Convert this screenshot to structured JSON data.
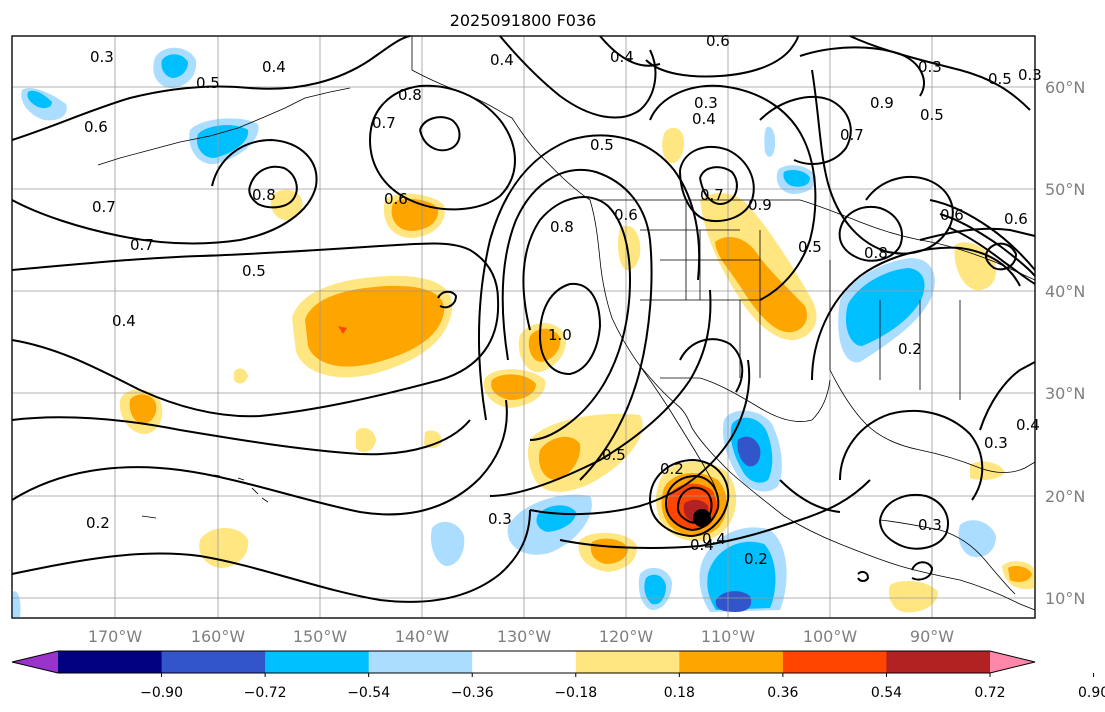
{
  "title": "2025091800 F036",
  "longitude_labels": [
    "170°W",
    "160°W",
    "150°W",
    "140°W",
    "130°W",
    "120°W",
    "110°W",
    "100°W",
    "90°W"
  ],
  "latitude_labels": [
    "60°N",
    "50°N",
    "40°N",
    "30°N",
    "20°N",
    "10°N"
  ],
  "colorbar": {
    "tick_labels": [
      "−0.90",
      "−0.72",
      "−0.54",
      "−0.36",
      "−0.18",
      "0.18",
      "0.36",
      "0.54",
      "0.72",
      "0.90"
    ],
    "colors": [
      "#9933cc",
      "#000080",
      "#3355cc",
      "#00bfff",
      "#aaddff",
      "#ffffff",
      "#ffe680",
      "#ffa500",
      "#ff4500",
      "#b22222",
      "#ff88aa"
    ]
  },
  "contour_labels": [
    "0.3",
    "0.5",
    "0.4",
    "0.4",
    "0.6",
    "0.4",
    "0.6",
    "0.3",
    "0.5",
    "0.5",
    "0.6",
    "0.7",
    "0.8",
    "0.5",
    "0.3",
    "0.4",
    "0.5",
    "0.7",
    "0.7",
    "0.8",
    "0.7",
    "0.7",
    "0.9",
    "0.9",
    "0.6",
    "0.5",
    "0.4",
    "0.8",
    "0.6",
    "0.8",
    "1.0",
    "0.6",
    "0.5",
    "0.2",
    "0.3",
    "0.2",
    "0.4",
    "0.2",
    "0.2",
    "0.3",
    "0.3",
    "0.3",
    "0.4",
    "0.4"
  ],
  "storm_marker": "tropical-cyclone-center"
}
